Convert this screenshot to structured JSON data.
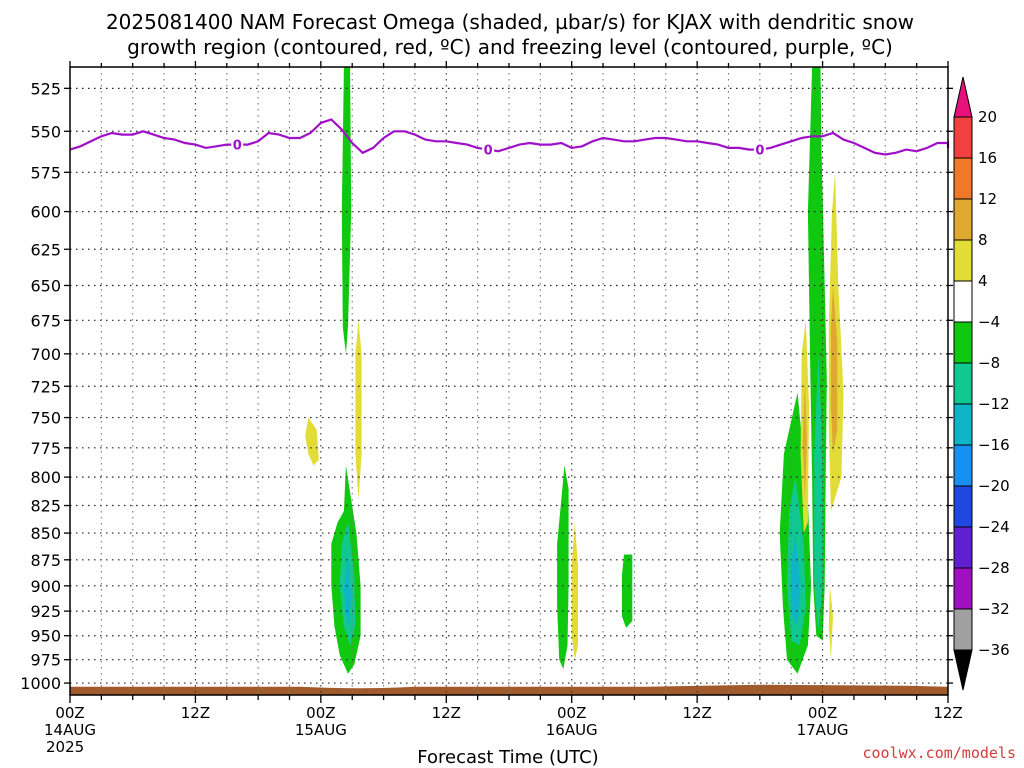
{
  "chart_data": {
    "type": "heatmap",
    "title_line1": "2025081400 NAM Forecast Omega (shaded, µbar/s) for KJAX with dendritic snow",
    "title_line2": "growth region (contoured, red, ºC) and freezing level (contoured, purple, ºC)",
    "xlabel": "Forecast Time (UTC)",
    "credit": "coolwx.com/models",
    "x_range_hours": [
      0,
      84
    ],
    "y_range_hpa": [
      1013,
      513
    ],
    "y_scale": "log-pressure",
    "grid": true,
    "x_ticks": [
      {
        "hour": 0,
        "label": "00Z",
        "sub1": "14AUG",
        "sub2": "2025"
      },
      {
        "hour": 12,
        "label": "12Z",
        "sub1": "",
        "sub2": ""
      },
      {
        "hour": 24,
        "label": "00Z",
        "sub1": "15AUG",
        "sub2": ""
      },
      {
        "hour": 36,
        "label": "12Z",
        "sub1": "",
        "sub2": ""
      },
      {
        "hour": 48,
        "label": "00Z",
        "sub1": "16AUG",
        "sub2": ""
      },
      {
        "hour": 60,
        "label": "12Z",
        "sub1": "",
        "sub2": ""
      },
      {
        "hour": 72,
        "label": "00Z",
        "sub1": "17AUG",
        "sub2": ""
      },
      {
        "hour": 84,
        "label": "12Z",
        "sub1": "",
        "sub2": ""
      }
    ],
    "y_ticks": [
      {
        "p": 525,
        "label": "525"
      },
      {
        "p": 550,
        "label": "550"
      },
      {
        "p": 575,
        "label": "575"
      },
      {
        "p": 600,
        "label": "600"
      },
      {
        "p": 625,
        "label": "625"
      },
      {
        "p": 650,
        "label": "650"
      },
      {
        "p": 675,
        "label": "675"
      },
      {
        "p": 700,
        "label": "700"
      },
      {
        "p": 725,
        "label": "725"
      },
      {
        "p": 750,
        "label": "750"
      },
      {
        "p": 775,
        "label": "775"
      },
      {
        "p": 800,
        "label": "800"
      },
      {
        "p": 825,
        "label": "825"
      },
      {
        "p": 850,
        "label": "850"
      },
      {
        "p": 875,
        "label": "875"
      },
      {
        "p": 900,
        "label": "900"
      },
      {
        "p": 925,
        "label": "925"
      },
      {
        "p": 950,
        "label": "950"
      },
      {
        "p": 975,
        "label": "975"
      },
      {
        "p": 1000,
        "label": "1000"
      }
    ],
    "colorbar": {
      "ticks": [
        "20",
        "16",
        "12",
        "8",
        "4",
        "−4",
        "−8",
        "−12",
        "−16",
        "−20",
        "−24",
        "−28",
        "−32",
        "−36"
      ],
      "bins": [
        {
          "range": "20+",
          "color": "#e8107a"
        },
        {
          "range": "16 to 20",
          "color": "#f04040"
        },
        {
          "range": "12 to 16",
          "color": "#f07828"
        },
        {
          "range": "8 to 12",
          "color": "#e0a830"
        },
        {
          "range": "4 to 8",
          "color": "#e2dc36"
        },
        {
          "range": "−4 to 4",
          "color": "#ffffff"
        },
        {
          "range": "−8 to −4",
          "color": "#10c810"
        },
        {
          "range": "−12 to −8",
          "color": "#10c890"
        },
        {
          "range": "−16 to −12",
          "color": "#10b4c8"
        },
        {
          "range": "−20 to −16",
          "color": "#1890f0"
        },
        {
          "range": "−24 to −20",
          "color": "#2048e0"
        },
        {
          "range": "−28 to −24",
          "color": "#6020d0"
        },
        {
          "range": "−32 to −28",
          "color": "#a010c0"
        },
        {
          "range": "−36 to −32",
          "color": "#a0a0a0"
        },
        {
          "range": "below −36",
          "color": "#000000"
        }
      ]
    },
    "freezing_level": {
      "color": "#a010c8",
      "label": "0",
      "label_hours": [
        16,
        40,
        66
      ],
      "points": [
        [
          0,
          561
        ],
        [
          1,
          559
        ],
        [
          2,
          556
        ],
        [
          3,
          553
        ],
        [
          4,
          551
        ],
        [
          5,
          552
        ],
        [
          6,
          552
        ],
        [
          7,
          550
        ],
        [
          8,
          552
        ],
        [
          9,
          554
        ],
        [
          10,
          555
        ],
        [
          11,
          557
        ],
        [
          12,
          558
        ],
        [
          13,
          560
        ],
        [
          14,
          559
        ],
        [
          15,
          558
        ],
        [
          16,
          558
        ],
        [
          17,
          558
        ],
        [
          18,
          556
        ],
        [
          19,
          551
        ],
        [
          20,
          552
        ],
        [
          21,
          554
        ],
        [
          22,
          554
        ],
        [
          23,
          551
        ],
        [
          24,
          545
        ],
        [
          25,
          543
        ],
        [
          26,
          549
        ],
        [
          27,
          557
        ],
        [
          28,
          563
        ],
        [
          29,
          560
        ],
        [
          30,
          554
        ],
        [
          31,
          550
        ],
        [
          32,
          550
        ],
        [
          33,
          552
        ],
        [
          34,
          555
        ],
        [
          35,
          556
        ],
        [
          36,
          556
        ],
        [
          37,
          557
        ],
        [
          38,
          558
        ],
        [
          39,
          560
        ],
        [
          40,
          561
        ],
        [
          41,
          562
        ],
        [
          42,
          560
        ],
        [
          43,
          558
        ],
        [
          44,
          557
        ],
        [
          45,
          558
        ],
        [
          46,
          558
        ],
        [
          47,
          557
        ],
        [
          48,
          560
        ],
        [
          49,
          559
        ],
        [
          50,
          556
        ],
        [
          51,
          554
        ],
        [
          52,
          555
        ],
        [
          53,
          556
        ],
        [
          54,
          556
        ],
        [
          55,
          555
        ],
        [
          56,
          554
        ],
        [
          57,
          554
        ],
        [
          58,
          555
        ],
        [
          59,
          556
        ],
        [
          60,
          556
        ],
        [
          61,
          557
        ],
        [
          62,
          558
        ],
        [
          63,
          560
        ],
        [
          64,
          560
        ],
        [
          65,
          561
        ],
        [
          66,
          561
        ],
        [
          67,
          560
        ],
        [
          68,
          558
        ],
        [
          69,
          556
        ],
        [
          70,
          554
        ],
        [
          71,
          553
        ],
        [
          72,
          553
        ],
        [
          73,
          551
        ],
        [
          74,
          555
        ],
        [
          75,
          557
        ],
        [
          76,
          560
        ],
        [
          77,
          563
        ],
        [
          78,
          564
        ],
        [
          79,
          563
        ],
        [
          80,
          561
        ],
        [
          81,
          562
        ],
        [
          82,
          560
        ],
        [
          83,
          557
        ],
        [
          84,
          557
        ],
        [
          85,
          558
        ],
        [
          86,
          560
        ],
        [
          87,
          560
        ],
        [
          88,
          559
        ],
        [
          89,
          557
        ],
        [
          90,
          556
        ],
        [
          91,
          558
        ],
        [
          92,
          560
        ]
      ]
    },
    "surface_fill": {
      "color": "#a05a2c",
      "p_top": 1004
    },
    "omega_regions": [
      {
        "omega_bin": "−8 to −4",
        "color": "#10c810",
        "polygon": [
          [
            26.2,
            513
          ],
          [
            26.8,
            513
          ],
          [
            26.9,
            600
          ],
          [
            26.6,
            680
          ],
          [
            26.4,
            700
          ],
          [
            26.1,
            680
          ],
          [
            26.0,
            600
          ]
        ]
      },
      {
        "omega_bin": "4 to 8",
        "color": "#e2dc36",
        "polygon": [
          [
            27.6,
            675
          ],
          [
            27.9,
            700
          ],
          [
            27.9,
            780
          ],
          [
            27.6,
            820
          ],
          [
            27.3,
            780
          ],
          [
            27.3,
            700
          ]
        ]
      },
      {
        "omega_bin": "4 to 8",
        "color": "#e2dc36",
        "polygon": [
          [
            22.8,
            750
          ],
          [
            23.6,
            760
          ],
          [
            23.8,
            785
          ],
          [
            23.3,
            790
          ],
          [
            22.8,
            780
          ],
          [
            22.5,
            765
          ]
        ]
      },
      {
        "omega_bin": "−8 to −4",
        "color": "#10c810",
        "polygon": [
          [
            26.4,
            790
          ],
          [
            27.4,
            850
          ],
          [
            27.8,
            900
          ],
          [
            27.8,
            950
          ],
          [
            27.2,
            980
          ],
          [
            26.6,
            990
          ],
          [
            25.8,
            970
          ],
          [
            25.3,
            940
          ],
          [
            25.0,
            900
          ],
          [
            25.0,
            860
          ],
          [
            25.6,
            840
          ],
          [
            26.2,
            830
          ]
        ]
      },
      {
        "omega_bin": "−12 to −8",
        "color": "#10c890",
        "polygon": [
          [
            26.6,
            840
          ],
          [
            27.2,
            890
          ],
          [
            27.3,
            940
          ],
          [
            26.8,
            960
          ],
          [
            26.2,
            940
          ],
          [
            25.8,
            900
          ],
          [
            26.0,
            860
          ]
        ]
      },
      {
        "omega_bin": "−16 to −12",
        "color": "#10b4c8",
        "polygon": [
          [
            26.6,
            870
          ],
          [
            26.9,
            910
          ],
          [
            26.7,
            940
          ],
          [
            26.4,
            930
          ],
          [
            26.2,
            900
          ]
        ]
      },
      {
        "omega_bin": "−8 to −4",
        "color": "#10c810",
        "polygon": [
          [
            47.3,
            790
          ],
          [
            47.7,
            810
          ],
          [
            47.7,
            900
          ],
          [
            47.6,
            960
          ],
          [
            47.2,
            985
          ],
          [
            46.8,
            975
          ],
          [
            46.6,
            920
          ],
          [
            46.6,
            860
          ],
          [
            47.0,
            820
          ]
        ]
      },
      {
        "omega_bin": "4 to 8",
        "color": "#e2dc36",
        "polygon": [
          [
            48.3,
            840
          ],
          [
            48.6,
            880
          ],
          [
            48.6,
            960
          ],
          [
            48.3,
            975
          ],
          [
            48.0,
            950
          ],
          [
            48.0,
            880
          ]
        ]
      },
      {
        "omega_bin": "−8 to −4",
        "color": "#10c810",
        "polygon": [
          [
            53.0,
            870
          ],
          [
            53.8,
            870
          ],
          [
            53.8,
            935
          ],
          [
            53.2,
            942
          ],
          [
            52.8,
            930
          ],
          [
            52.8,
            890
          ]
        ]
      },
      {
        "omega_bin": "−8 to −4",
        "color": "#10c810",
        "polygon": [
          [
            71.0,
            513
          ],
          [
            71.8,
            513
          ],
          [
            71.9,
            560
          ],
          [
            72.2,
            650
          ],
          [
            72.4,
            720
          ],
          [
            72.3,
            800
          ],
          [
            72.2,
            900
          ],
          [
            72.0,
            955
          ],
          [
            71.4,
            950
          ],
          [
            71.1,
            900
          ],
          [
            71.0,
            800
          ],
          [
            70.8,
            700
          ],
          [
            70.6,
            600
          ]
        ]
      },
      {
        "omega_bin": "−8 to −4",
        "color": "#10c810",
        "polygon": [
          [
            69.6,
            730
          ],
          [
            70.6,
            820
          ],
          [
            70.9,
            900
          ],
          [
            70.6,
            960
          ],
          [
            69.6,
            990
          ],
          [
            68.6,
            975
          ],
          [
            68.2,
            920
          ],
          [
            67.9,
            850
          ],
          [
            68.3,
            780
          ]
        ]
      },
      {
        "omega_bin": "−12 to −8",
        "color": "#10c890",
        "polygon": [
          [
            69.4,
            800
          ],
          [
            70.2,
            860
          ],
          [
            70.4,
            920
          ],
          [
            69.8,
            960
          ],
          [
            69.0,
            955
          ],
          [
            68.6,
            900
          ],
          [
            68.8,
            830
          ]
        ]
      },
      {
        "omega_bin": "−16 to −12",
        "color": "#10b4c8",
        "polygon": [
          [
            69.4,
            850
          ],
          [
            69.9,
            900
          ],
          [
            69.6,
            940
          ],
          [
            69.1,
            930
          ],
          [
            69.0,
            880
          ]
        ]
      },
      {
        "omega_bin": "−12 to −8",
        "color": "#10c890",
        "polygon": [
          [
            71.6,
            700
          ],
          [
            72.0,
            780
          ],
          [
            72.0,
            900
          ],
          [
            71.6,
            945
          ],
          [
            71.2,
            900
          ],
          [
            71.2,
            780
          ]
        ]
      },
      {
        "omega_bin": "4 to 8",
        "color": "#e2dc36",
        "polygon": [
          [
            73.2,
            575
          ],
          [
            73.5,
            650
          ],
          [
            74.0,
            730
          ],
          [
            73.8,
            800
          ],
          [
            72.8,
            830
          ],
          [
            72.6,
            760
          ],
          [
            72.6,
            680
          ],
          [
            72.9,
            600
          ]
        ]
      },
      {
        "omega_bin": "8 to 12",
        "color": "#e0a830",
        "polygon": [
          [
            73.0,
            650
          ],
          [
            73.4,
            690
          ],
          [
            73.4,
            760
          ],
          [
            73.0,
            780
          ],
          [
            72.8,
            740
          ],
          [
            72.8,
            680
          ]
        ]
      },
      {
        "omega_bin": "4 to 8",
        "color": "#e2dc36",
        "polygon": [
          [
            70.4,
            675
          ],
          [
            70.7,
            740
          ],
          [
            70.6,
            840
          ],
          [
            70.2,
            850
          ],
          [
            69.9,
            780
          ],
          [
            70.0,
            700
          ]
        ]
      },
      {
        "omega_bin": "8 to 12",
        "color": "#e0a830",
        "polygon": [
          [
            70.3,
            720
          ],
          [
            70.5,
            770
          ],
          [
            70.3,
            820
          ],
          [
            70.1,
            770
          ]
        ]
      },
      {
        "omega_bin": "4 to 8",
        "color": "#e2dc36",
        "polygon": [
          [
            72.7,
            900
          ],
          [
            73.0,
            930
          ],
          [
            72.8,
            975
          ],
          [
            72.6,
            940
          ]
        ]
      }
    ]
  }
}
